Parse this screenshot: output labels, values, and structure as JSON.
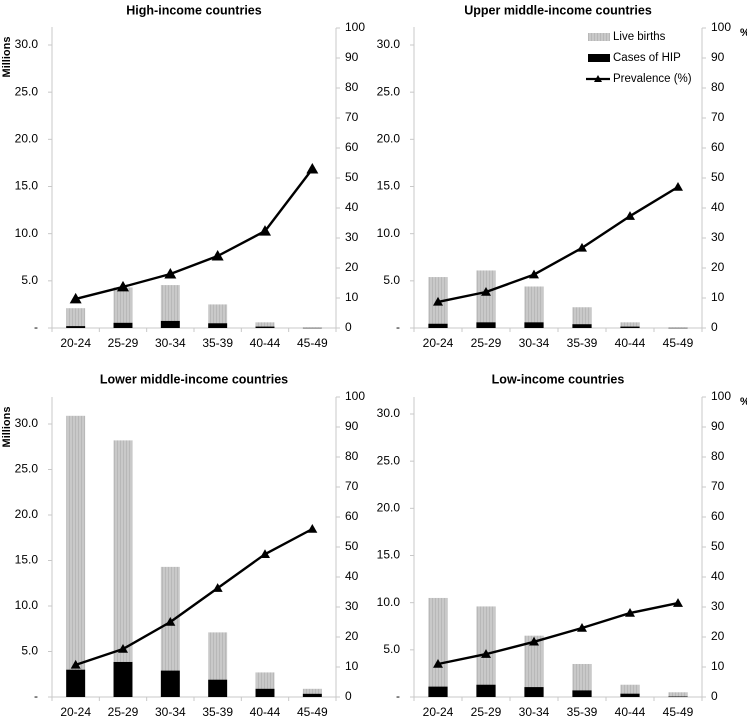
{
  "chart_data": [
    {
      "type": "bar",
      "subtype": "stacked-overlay bar with line on secondary axis",
      "title": "High-income countries",
      "categories": [
        "20-24",
        "25-29",
        "30-34",
        "35-39",
        "40-44",
        "45-49"
      ],
      "ylabel": "Millions",
      "y2label": "",
      "ylim": [
        0,
        30
      ],
      "y2lim": [
        0,
        100
      ],
      "yticks": [
        "-",
        "5.0",
        "10.0",
        "15.0",
        "20.0",
        "25.0",
        "30.0"
      ],
      "y2ticks": [
        "0",
        "10",
        "20",
        "30",
        "40",
        "50",
        "60",
        "70",
        "80",
        "90",
        "100"
      ],
      "series": [
        {
          "name": "Live births",
          "kind": "bar",
          "axis": "left",
          "values": [
            2.1,
            4.3,
            4.55,
            2.5,
            0.6,
            0.05
          ]
        },
        {
          "name": "Cases of HIP",
          "kind": "bar",
          "axis": "left",
          "values": [
            0.2,
            0.55,
            0.75,
            0.5,
            0.15,
            0.02
          ]
        },
        {
          "name": "Prevalence (%)",
          "kind": "line",
          "axis": "right",
          "values": [
            9.7,
            13.7,
            18.0,
            24.0,
            32.3,
            53.0
          ]
        }
      ],
      "legend": null
    },
    {
      "type": "bar",
      "subtype": "stacked-overlay bar with line on secondary axis",
      "title": "Upper middle-income countries",
      "categories": [
        "20-24",
        "25-29",
        "30-34",
        "35-39",
        "40-44",
        "45-49"
      ],
      "ylabel": "",
      "y2label": "%",
      "ylim": [
        0,
        30
      ],
      "y2lim": [
        0,
        100
      ],
      "yticks": [
        "-",
        "5.0",
        "10.0",
        "15.0",
        "20.0",
        "25.0",
        "30.0"
      ],
      "y2ticks": [
        "0",
        "10",
        "20",
        "30",
        "40",
        "50",
        "60",
        "70",
        "80",
        "90",
        "100"
      ],
      "series": [
        {
          "name": "Live births",
          "kind": "bar",
          "axis": "left",
          "values": [
            5.4,
            6.1,
            4.4,
            2.2,
            0.6,
            0.05
          ]
        },
        {
          "name": "Cases of HIP",
          "kind": "bar",
          "axis": "left",
          "values": [
            0.45,
            0.6,
            0.6,
            0.4,
            0.15,
            0.02
          ]
        },
        {
          "name": "Prevalence (%)",
          "kind": "line",
          "axis": "right",
          "values": [
            8.7,
            12.0,
            17.8,
            26.7,
            37.3,
            47.0
          ]
        }
      ],
      "legend": {
        "placement": "top-right",
        "entries": [
          "Live births",
          "Cases of HIP",
          "Prevalence (%)"
        ]
      }
    },
    {
      "type": "bar",
      "subtype": "stacked-overlay bar with line on secondary axis",
      "title": "Lower middle-income countries",
      "categories": [
        "20-24",
        "25-29",
        "30-34",
        "35-39",
        "40-44",
        "45-49"
      ],
      "ylabel": "Millions",
      "y2label": "",
      "ylim": [
        0,
        32
      ],
      "y2lim": [
        0,
        100
      ],
      "yticks": [
        "-",
        "5.0",
        "10.0",
        "15.0",
        "20.0",
        "25.0",
        "30.0"
      ],
      "y2ticks": [
        "0",
        "10",
        "20",
        "30",
        "40",
        "50",
        "60",
        "70",
        "80",
        "90",
        "100"
      ],
      "series": [
        {
          "name": "Live births",
          "kind": "bar",
          "axis": "left",
          "values": [
            30.9,
            28.2,
            14.3,
            7.1,
            2.7,
            0.9
          ]
        },
        {
          "name": "Cases of HIP",
          "kind": "bar",
          "axis": "left",
          "values": [
            3.0,
            3.85,
            2.9,
            1.9,
            0.9,
            0.35
          ]
        },
        {
          "name": "Prevalence (%)",
          "kind": "line",
          "axis": "right",
          "values": [
            10.7,
            16.0,
            25.0,
            36.3,
            47.6,
            56.0
          ]
        }
      ],
      "legend": null
    },
    {
      "type": "bar",
      "subtype": "stacked-overlay bar with line on secondary axis",
      "title": "Low-income countries",
      "categories": [
        "20-24",
        "25-29",
        "30-34",
        "35-39",
        "40-44",
        "45-49"
      ],
      "ylabel": "",
      "y2label": "%",
      "ylim": [
        0,
        30
      ],
      "y2lim": [
        0,
        100
      ],
      "yticks": [
        "-",
        "5.0",
        "10.0",
        "15.0",
        "20.0",
        "25.0",
        "30.0"
      ],
      "y2ticks": [
        "0",
        "10",
        "20",
        "30",
        "40",
        "50",
        "60",
        "70",
        "80",
        "90",
        "100"
      ],
      "series": [
        {
          "name": "Live births",
          "kind": "bar",
          "axis": "left",
          "values": [
            10.5,
            9.6,
            6.5,
            3.5,
            1.3,
            0.5
          ]
        },
        {
          "name": "Cases of HIP",
          "kind": "bar",
          "axis": "left",
          "values": [
            1.1,
            1.3,
            1.05,
            0.7,
            0.35,
            0.05
          ]
        },
        {
          "name": "Prevalence (%)",
          "kind": "line",
          "axis": "right",
          "values": [
            11.0,
            14.3,
            18.4,
            23.0,
            28.0,
            31.3
          ]
        }
      ],
      "legend": null
    }
  ],
  "colors": {
    "live_births": "#c4c4c4",
    "cases_hip": "#000000",
    "prevalence": "#000000",
    "axis": "#c8c8c8"
  }
}
